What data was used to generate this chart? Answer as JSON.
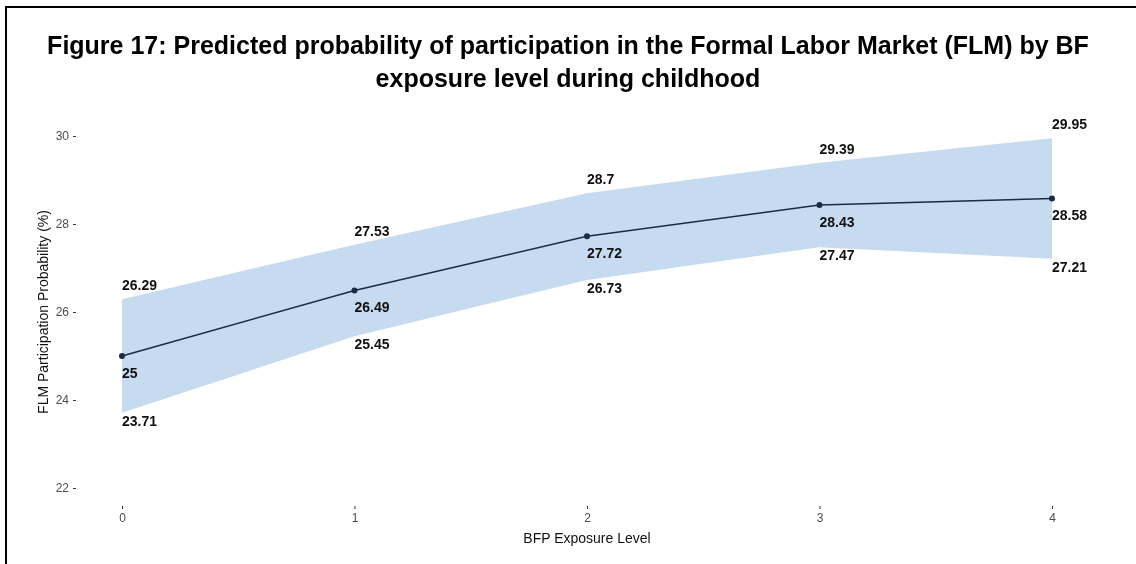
{
  "chart_data": {
    "type": "line",
    "title": "Figure 17: Predicted probability of participation in the Formal Labor Market (FLM) by BF exposure level during childhood",
    "xlabel": "BFP Exposure Level",
    "ylabel": "FLM Participation Probability (%)",
    "x": [
      0,
      1,
      2,
      3,
      4
    ],
    "series": [
      {
        "color": "#1b2a41",
        "values": [
          25,
          26.49,
          27.72,
          28.43,
          28.58
        ],
        "lower": [
          23.71,
          25.45,
          26.73,
          27.47,
          27.21
        ],
        "upper": [
          26.29,
          27.53,
          28.7,
          29.39,
          29.95
        ]
      }
    ],
    "annotations": [
      {
        "text": "26.29",
        "x": 0,
        "y": 26.29
      },
      {
        "text": "23.71",
        "x": 0,
        "y": 23.71
      },
      {
        "text": "27.53",
        "x": 1,
        "y": 27.53
      },
      {
        "text": "25.45",
        "x": 1,
        "y": 25.45
      },
      {
        "text": "28.7",
        "x": 2,
        "y": 28.7
      },
      {
        "text": "26.73",
        "x": 2,
        "y": 26.73
      },
      {
        "text": "29.39",
        "x": 3,
        "y": 29.39
      },
      {
        "text": "27.47",
        "x": 3,
        "y": 27.47
      },
      {
        "text": "29.95",
        "x": 4,
        "y": 29.95
      },
      {
        "text": "27.21",
        "x": 4,
        "y": 27.21
      }
    ],
    "xlim": [
      0,
      4
    ],
    "xticks": [
      0,
      1,
      2,
      3,
      4
    ],
    "ylim": [
      22,
      30
    ],
    "yticks": [
      22,
      24,
      26,
      28,
      30
    ],
    "grid": false,
    "marker": "circle",
    "data_labels": true
  }
}
